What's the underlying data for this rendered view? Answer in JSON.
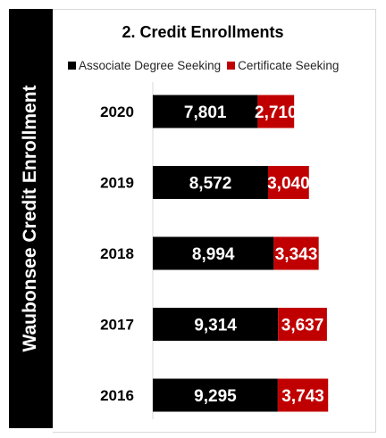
{
  "side_title": "Waubonsee Credit Enrollment",
  "colors": {
    "associate": "#000000",
    "certificate": "#c00000"
  },
  "chart_data": {
    "type": "bar",
    "orientation": "horizontal",
    "stacked": true,
    "title": "2.  Credit Enrollments",
    "categories": [
      "2020",
      "2019",
      "2018",
      "2017",
      "2016"
    ],
    "series": [
      {
        "name": "Associate Degree Seeking",
        "values": [
          7801,
          8572,
          8994,
          9314,
          9295
        ],
        "labels": [
          "7,801",
          "8,572",
          "8,994",
          "9,314",
          "9,295"
        ]
      },
      {
        "name": "Certificate Seeking",
        "values": [
          2710,
          3040,
          3343,
          3637,
          3743
        ],
        "labels": [
          "2,710",
          "3,040",
          "3,343",
          "3,637",
          "3,743"
        ]
      }
    ],
    "legend": "top",
    "grid": false
  }
}
